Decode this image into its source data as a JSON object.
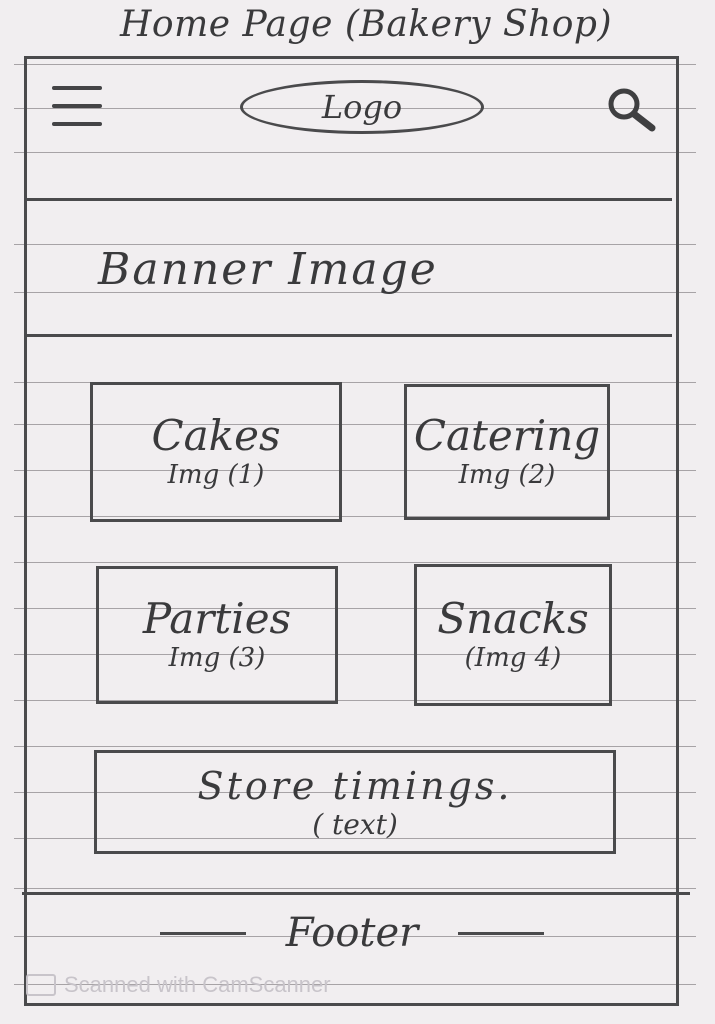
{
  "sheet_title": "Home Page (Bakery Shop)",
  "header": {
    "menu_icon": "hamburger-menu-icon",
    "logo_text": "Logo",
    "search_icon": "search-icon"
  },
  "banner": {
    "label": "Banner Image"
  },
  "tiles": [
    {
      "title": "Cakes",
      "subtitle": "Img (1)"
    },
    {
      "title": "Catering",
      "subtitle": "Img (2)"
    },
    {
      "title": "Parties",
      "subtitle": "Img (3)"
    },
    {
      "title": "Snacks",
      "subtitle": "(Img 4)"
    }
  ],
  "store_timings": {
    "title": "Store timings.",
    "subtitle": "( text)"
  },
  "footer": {
    "label": "Footer"
  },
  "watermark": {
    "text": "Scanned with CamScanner"
  },
  "colors": {
    "paper": "#f1eef0",
    "pencil": "#4a4a4c",
    "rule": "#8d8a8e"
  }
}
